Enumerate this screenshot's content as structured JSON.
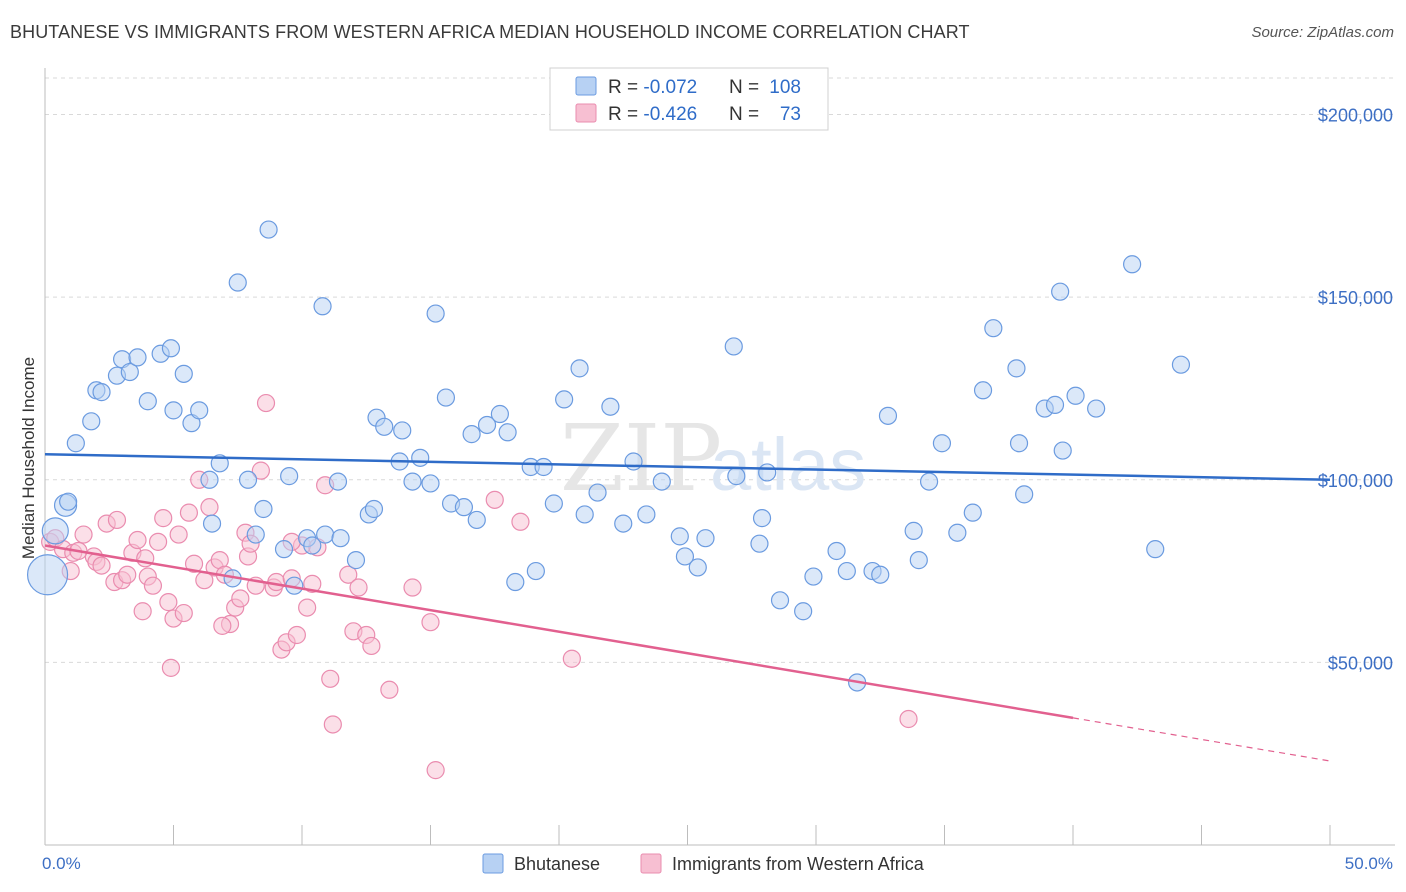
{
  "title": "BHUTANESE VS IMMIGRANTS FROM WESTERN AFRICA MEDIAN HOUSEHOLD INCOME CORRELATION CHART",
  "source": "Source: ZipAtlas.com",
  "watermark": {
    "zip": "ZIP",
    "atlas": "atlas"
  },
  "colors": {
    "blue_fill": "#b7d1f3",
    "blue_stroke": "#6b9be0",
    "blue_line": "#2f6cc8",
    "pink_fill": "#f7bfd2",
    "pink_stroke": "#ea8caf",
    "pink_line": "#e2608f",
    "grid": "#d9d9d9",
    "tick_label": "#3d6fc4"
  },
  "legend": {
    "entries": [
      {
        "r_label": "R = ",
        "r_value": "-0.072",
        "n_label": "N = ",
        "n_value": "108"
      },
      {
        "r_label": "R = ",
        "r_value": "-0.426",
        "n_label": "N = ",
        "n_value": "73"
      }
    ]
  },
  "chart_data": {
    "type": "scatter",
    "xlabel": "",
    "ylabel": "Median Household Income",
    "xlim": [
      0,
      50
    ],
    "ylim": [
      0,
      210000
    ],
    "x_tick_labels": [
      "0.0%",
      "50.0%"
    ],
    "y_ticks": [
      {
        "value": 50000,
        "label": "$50,000"
      },
      {
        "value": 100000,
        "label": "$100,000"
      },
      {
        "value": 150000,
        "label": "$150,000"
      },
      {
        "value": 200000,
        "label": "$200,000"
      }
    ],
    "grid": "horizontal dashed",
    "series": [
      {
        "name": "Bhutanese",
        "trend": {
          "x": [
            0,
            50
          ],
          "y": [
            107000,
            100000
          ],
          "dashed_from": null
        },
        "points": [
          [
            0.1,
            74000
          ],
          [
            0.4,
            86000
          ],
          [
            0.8,
            93000
          ],
          [
            0.9,
            94000
          ],
          [
            1.2,
            110000
          ],
          [
            1.8,
            116000
          ],
          [
            2.0,
            124500
          ],
          [
            2.2,
            124000
          ],
          [
            2.8,
            128500
          ],
          [
            3.0,
            133000
          ],
          [
            3.3,
            129500
          ],
          [
            3.6,
            133500
          ],
          [
            4.0,
            121500
          ],
          [
            4.5,
            134500
          ],
          [
            4.9,
            136000
          ],
          [
            5.0,
            119000
          ],
          [
            5.4,
            129000
          ],
          [
            5.7,
            115500
          ],
          [
            6.0,
            119000
          ],
          [
            6.4,
            100000
          ],
          [
            6.5,
            88000
          ],
          [
            6.8,
            104500
          ],
          [
            7.3,
            73000
          ],
          [
            7.5,
            154000
          ],
          [
            7.9,
            100000
          ],
          [
            8.2,
            85000
          ],
          [
            8.5,
            92000
          ],
          [
            8.7,
            168500
          ],
          [
            9.3,
            81000
          ],
          [
            9.5,
            101000
          ],
          [
            9.7,
            71000
          ],
          [
            10.2,
            84000
          ],
          [
            10.4,
            82000
          ],
          [
            10.8,
            147500
          ],
          [
            10.9,
            85000
          ],
          [
            11.4,
            99500
          ],
          [
            11.5,
            84000
          ],
          [
            12.1,
            78000
          ],
          [
            12.6,
            90500
          ],
          [
            12.8,
            92000
          ],
          [
            12.9,
            117000
          ],
          [
            13.2,
            114500
          ],
          [
            13.8,
            105000
          ],
          [
            13.9,
            113500
          ],
          [
            14.3,
            99500
          ],
          [
            14.6,
            106000
          ],
          [
            15.0,
            99000
          ],
          [
            15.2,
            145500
          ],
          [
            15.6,
            122500
          ],
          [
            15.8,
            93500
          ],
          [
            16.3,
            92500
          ],
          [
            16.6,
            112500
          ],
          [
            16.8,
            89000
          ],
          [
            17.2,
            115000
          ],
          [
            17.7,
            118000
          ],
          [
            18.0,
            113000
          ],
          [
            18.3,
            72000
          ],
          [
            18.9,
            103500
          ],
          [
            19.1,
            75000
          ],
          [
            19.4,
            103500
          ],
          [
            19.8,
            93500
          ],
          [
            20.2,
            122000
          ],
          [
            20.8,
            130500
          ],
          [
            21.0,
            90500
          ],
          [
            21.5,
            96500
          ],
          [
            22.0,
            120000
          ],
          [
            22.5,
            88000
          ],
          [
            22.9,
            105000
          ],
          [
            23.4,
            90500
          ],
          [
            24.0,
            99500
          ],
          [
            24.7,
            84500
          ],
          [
            24.9,
            79000
          ],
          [
            25.4,
            76000
          ],
          [
            25.7,
            84000
          ],
          [
            26.8,
            136500
          ],
          [
            26.9,
            101000
          ],
          [
            27.8,
            82500
          ],
          [
            27.9,
            89500
          ],
          [
            28.1,
            102000
          ],
          [
            28.6,
            67000
          ],
          [
            29.5,
            64000
          ],
          [
            29.9,
            73500
          ],
          [
            30.8,
            80500
          ],
          [
            31.2,
            75000
          ],
          [
            31.6,
            44500
          ],
          [
            32.2,
            75000
          ],
          [
            32.5,
            74000
          ],
          [
            32.8,
            117500
          ],
          [
            33.8,
            86000
          ],
          [
            34.0,
            78000
          ],
          [
            34.4,
            99500
          ],
          [
            34.9,
            110000
          ],
          [
            35.5,
            85500
          ],
          [
            36.1,
            91000
          ],
          [
            36.5,
            124500
          ],
          [
            36.9,
            141500
          ],
          [
            37.8,
            130500
          ],
          [
            37.9,
            110000
          ],
          [
            38.1,
            96000
          ],
          [
            38.9,
            119500
          ],
          [
            39.3,
            120500
          ],
          [
            39.5,
            151500
          ],
          [
            39.6,
            108000
          ],
          [
            40.1,
            123000
          ],
          [
            40.9,
            119500
          ],
          [
            42.3,
            159000
          ],
          [
            43.2,
            81000
          ],
          [
            44.2,
            131500
          ]
        ]
      },
      {
        "name": "Immigrants from Western Africa",
        "trend": {
          "x": [
            0,
            50
          ],
          "y": [
            82000,
            23000
          ],
          "dashed_from": 40
        },
        "points": [
          [
            0.2,
            83000
          ],
          [
            0.4,
            84000
          ],
          [
            0.7,
            81000
          ],
          [
            1.0,
            75000
          ],
          [
            1.1,
            80000
          ],
          [
            1.5,
            85000
          ],
          [
            1.9,
            79000
          ],
          [
            2.0,
            77500
          ],
          [
            2.2,
            76500
          ],
          [
            2.4,
            88000
          ],
          [
            2.7,
            72000
          ],
          [
            2.8,
            89000
          ],
          [
            3.0,
            72500
          ],
          [
            3.2,
            74000
          ],
          [
            3.4,
            80000
          ],
          [
            3.6,
            83500
          ],
          [
            3.8,
            64000
          ],
          [
            4.0,
            73500
          ],
          [
            4.2,
            71000
          ],
          [
            4.4,
            83000
          ],
          [
            4.6,
            89500
          ],
          [
            4.8,
            66500
          ],
          [
            4.9,
            48500
          ],
          [
            5.0,
            62000
          ],
          [
            5.2,
            85000
          ],
          [
            5.4,
            63500
          ],
          [
            5.6,
            91000
          ],
          [
            5.8,
            77000
          ],
          [
            6.0,
            100000
          ],
          [
            6.2,
            72500
          ],
          [
            6.4,
            92500
          ],
          [
            6.6,
            76000
          ],
          [
            6.8,
            78000
          ],
          [
            7.0,
            74000
          ],
          [
            7.2,
            60500
          ],
          [
            7.4,
            65000
          ],
          [
            7.6,
            67500
          ],
          [
            7.8,
            85500
          ],
          [
            7.9,
            79000
          ],
          [
            8.0,
            82500
          ],
          [
            8.2,
            71000
          ],
          [
            8.4,
            102500
          ],
          [
            8.6,
            121000
          ],
          [
            8.9,
            70500
          ],
          [
            9.0,
            72000
          ],
          [
            9.2,
            53500
          ],
          [
            9.4,
            55500
          ],
          [
            9.6,
            73000
          ],
          [
            9.8,
            57500
          ],
          [
            10.0,
            82000
          ],
          [
            10.2,
            65000
          ],
          [
            10.6,
            81500
          ],
          [
            10.9,
            98500
          ],
          [
            11.1,
            45500
          ],
          [
            11.2,
            33000
          ],
          [
            11.8,
            74000
          ],
          [
            12.0,
            58500
          ],
          [
            12.2,
            70500
          ],
          [
            12.5,
            57500
          ],
          [
            12.7,
            54500
          ],
          [
            13.4,
            42500
          ],
          [
            14.3,
            70500
          ],
          [
            15.0,
            61000
          ],
          [
            15.2,
            20500
          ],
          [
            17.5,
            94500
          ],
          [
            18.5,
            88500
          ],
          [
            20.5,
            51000
          ],
          [
            33.6,
            34500
          ],
          [
            1.3,
            80500
          ],
          [
            3.9,
            78500
          ],
          [
            6.9,
            60000
          ],
          [
            9.6,
            83000
          ],
          [
            10.4,
            71500
          ]
        ]
      }
    ]
  },
  "bottom_legend": [
    "Bhutanese",
    "Immigrants from Western Africa"
  ]
}
